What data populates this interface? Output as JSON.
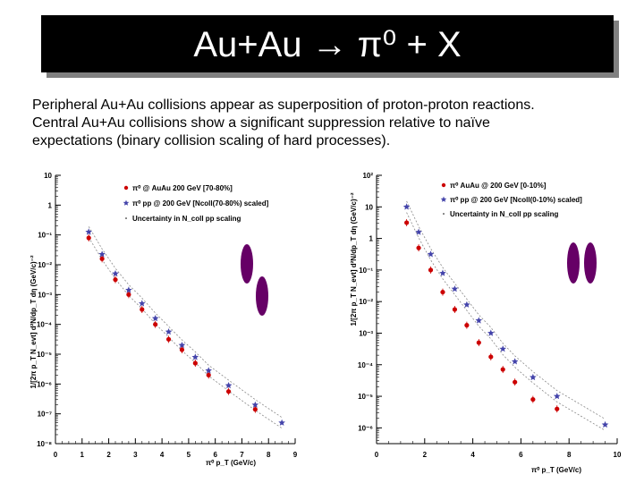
{
  "slide": {
    "title": "Au+Au → π⁰ + X",
    "subtitle_lines": [
      "Peripheral Au+Au collisions appear as superposition of proton-proton reactions.",
      "Central Au+Au collisions show a significant suppression relative to naïve",
      "expectations (binary collision scaling of hard processes)."
    ]
  },
  "chart_data": [
    {
      "type": "scatter",
      "title": "",
      "xlabel": "π⁰ p_T (GeV/c)",
      "ylabel": "1/[2π p_T N_evt] d²N/dp_T dη (GeV/c)⁻²",
      "x_ticks": [
        "0",
        "1",
        "2",
        "3",
        "4",
        "5",
        "6",
        "7",
        "8",
        "9"
      ],
      "y_ticks": [
        "10",
        "1",
        "10⁻¹",
        "10⁻²",
        "10⁻³",
        "10⁻⁴",
        "10⁻⁵",
        "10⁻⁶",
        "10⁻⁷",
        "10⁻⁸"
      ],
      "xlim": [
        0,
        9
      ],
      "ylim": [
        -8,
        1
      ],
      "log_y": true,
      "legend_position": "top-right",
      "legend": [
        "π⁰ @ AuAu 200 GeV [70-80%]",
        "π⁰ pp @ 200 GeV [Ncoll(70-80%) scaled]",
        "Uncertainty in N_coll pp scaling"
      ],
      "colors": {
        "auau": "#cc0000",
        "pp": "#4444aa",
        "band": "#888888",
        "marker": "#660066"
      },
      "series": [
        {
          "marker": "circle",
          "x": [
            1.25,
            1.75,
            2.25,
            2.75,
            3.25,
            3.75,
            4.25,
            4.75,
            5.25,
            5.75,
            6.5,
            7.5
          ],
          "log10_y": [
            -1.1,
            -1.8,
            -2.5,
            -3.0,
            -3.5,
            -4.0,
            -4.5,
            -4.85,
            -5.3,
            -5.7,
            -6.25,
            -6.85
          ]
        },
        {
          "marker": "star",
          "x": [
            1.25,
            1.75,
            2.25,
            2.75,
            3.25,
            3.75,
            4.25,
            4.75,
            5.25,
            5.75,
            6.5,
            7.5,
            8.5
          ],
          "log10_y": [
            -0.9,
            -1.65,
            -2.3,
            -2.85,
            -3.3,
            -3.8,
            -4.25,
            -4.7,
            -5.1,
            -5.55,
            -6.05,
            -6.7,
            -7.3
          ]
        }
      ]
    },
    {
      "type": "scatter",
      "title": "",
      "xlabel": "π⁰ p_T (GeV/c)",
      "ylabel": "1/[2π p_T N_evt] d²N/dp_T dη (GeV/c)⁻²",
      "x_ticks": [
        "0",
        "2",
        "4",
        "6",
        "8",
        "10"
      ],
      "y_ticks": [
        "10²",
        "10",
        "1",
        "10⁻¹",
        "10⁻²",
        "10⁻³",
        "10⁻⁴",
        "10⁻⁵",
        "10⁻⁶"
      ],
      "xlim": [
        0,
        10
      ],
      "ylim": [
        -6.5,
        2
      ],
      "log_y": true,
      "legend_position": "top-right",
      "legend": [
        "π⁰ AuAu @ 200 GeV [0-10%]",
        "π⁰ pp @ 200 GeV [Ncoll(0-10%) scaled]",
        "Uncertainty in N_coll pp scaling"
      ],
      "colors": {
        "auau": "#cc0000",
        "pp": "#4444aa",
        "band": "#888888",
        "marker": "#660066"
      },
      "series": [
        {
          "marker": "circle",
          "x": [
            1.25,
            1.75,
            2.25,
            2.75,
            3.25,
            3.75,
            4.25,
            4.75,
            5.25,
            5.75,
            6.5,
            7.5
          ],
          "log10_y": [
            0.5,
            -0.3,
            -1.0,
            -1.7,
            -2.25,
            -2.75,
            -3.3,
            -3.75,
            -4.15,
            -4.55,
            -5.1,
            -5.4
          ]
        },
        {
          "marker": "star",
          "x": [
            1.25,
            1.75,
            2.25,
            2.75,
            3.25,
            3.75,
            4.25,
            4.75,
            5.25,
            5.75,
            6.5,
            7.5,
            9.5
          ],
          "log10_y": [
            1.0,
            0.2,
            -0.5,
            -1.1,
            -1.6,
            -2.1,
            -2.6,
            -3.0,
            -3.5,
            -3.9,
            -4.4,
            -5.0,
            -5.9
          ]
        }
      ]
    }
  ]
}
